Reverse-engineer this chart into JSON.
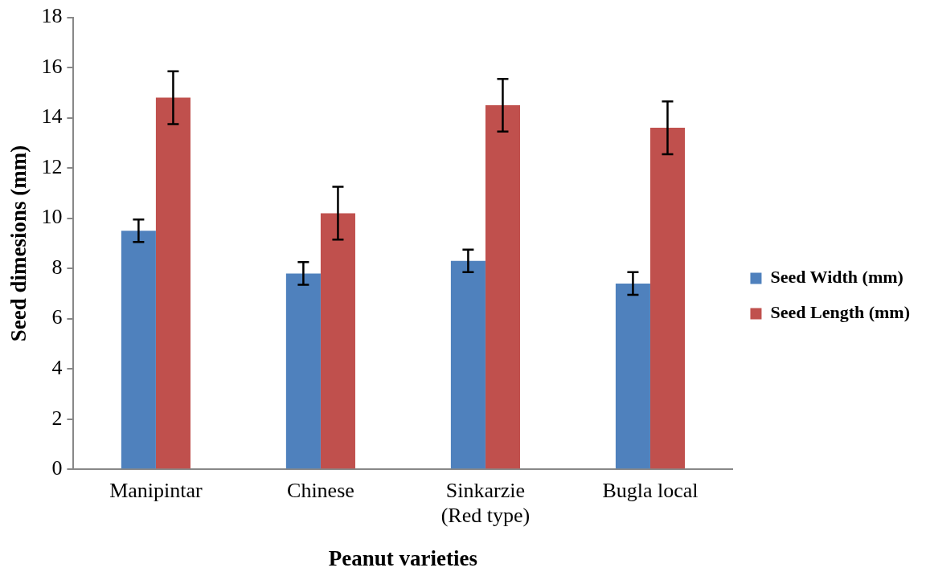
{
  "chart_data": {
    "type": "bar",
    "xlabel": "Peanut varieties",
    "ylabel": "Seed dimesions (mm)",
    "categories": [
      "Manipintar",
      "Chinese",
      "Sinkarzie\n(Red type)",
      "Bugla local"
    ],
    "series": [
      {
        "name": "Seed Width (mm)",
        "color": "#4f81bd",
        "values": [
          9.5,
          7.8,
          8.3,
          7.4
        ],
        "errors": [
          0.45,
          0.45,
          0.45,
          0.45
        ]
      },
      {
        "name": "Seed Length (mm)",
        "color": "#c0504d",
        "values": [
          14.8,
          10.2,
          14.5,
          13.6
        ],
        "errors": [
          1.05,
          1.05,
          1.05,
          1.05
        ]
      }
    ],
    "ylim": [
      0,
      18
    ],
    "yticks": [
      0,
      2,
      4,
      6,
      8,
      10,
      12,
      14,
      16,
      18
    ],
    "grid": false,
    "legend": "right"
  }
}
